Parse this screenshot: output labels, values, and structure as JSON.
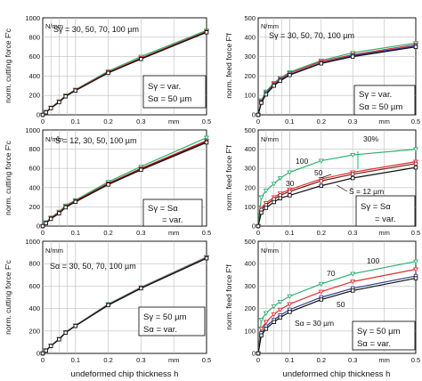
{
  "colors": {
    "green": "#2fae6f",
    "red": "#e03030",
    "dark_red": "#7a1a1a",
    "black": "#111111",
    "blue": "#2a3d8f",
    "grid": "#bdbdbd"
  },
  "x_axis_label": "undeformed chip thickness h",
  "x_unit": "mm",
  "y_unit": "N/mm",
  "chart_data": [
    {
      "type": "line",
      "ylabel": "norm. cutting force F'c",
      "xlim": [
        0,
        0.5
      ],
      "ylim": [
        0,
        1000
      ],
      "xticks": [
        "0",
        "0.1",
        "0.2",
        "0.3",
        "mm",
        "0.5"
      ],
      "yticks": [
        "0",
        "200",
        "400",
        "600",
        "800",
        "1000"
      ],
      "annotation": "Sγ = 30, 50, 70, 100 µm",
      "box": [
        "Sγ = var.",
        "Sα = 50 µm"
      ],
      "x": [
        0,
        0.01,
        0.025,
        0.05,
        0.07,
        0.1,
        0.2,
        0.3,
        0.5
      ],
      "series": [
        {
          "color": "green",
          "marker": "triangle",
          "values": [
            0,
            30,
            75,
            140,
            200,
            260,
            450,
            600,
            870
          ]
        },
        {
          "color": "red",
          "marker": "triangle",
          "values": [
            0,
            28,
            72,
            135,
            195,
            255,
            440,
            585,
            860
          ]
        },
        {
          "color": "dark_red",
          "marker": "circle",
          "values": [
            0,
            27,
            70,
            132,
            192,
            252,
            435,
            580,
            855
          ]
        },
        {
          "color": "black",
          "marker": "square",
          "values": [
            0,
            26,
            69,
            130,
            190,
            250,
            432,
            575,
            850
          ]
        }
      ]
    },
    {
      "type": "line",
      "ylabel": "norm. feed force F'f",
      "xlim": [
        0,
        0.5
      ],
      "ylim": [
        0,
        500
      ],
      "xticks": [
        "0",
        "0.1",
        "0.2",
        "0.3",
        "mm",
        "0.5"
      ],
      "yticks": [
        "0",
        "100",
        "200",
        "300",
        "400",
        "500"
      ],
      "annotation": "Sγ = 30, 50, 70, 100 µm",
      "box": [
        "Sγ = var.",
        "Sα = 50 µm"
      ],
      "x": [
        0,
        0.01,
        0.025,
        0.05,
        0.07,
        0.1,
        0.2,
        0.3,
        0.5
      ],
      "series": [
        {
          "color": "green",
          "marker": "triangle",
          "values": [
            0,
            75,
            120,
            165,
            190,
            220,
            280,
            320,
            370
          ]
        },
        {
          "color": "red",
          "marker": "triangle",
          "values": [
            0,
            70,
            115,
            160,
            185,
            215,
            275,
            310,
            362
          ]
        },
        {
          "color": "blue",
          "marker": "square",
          "values": [
            0,
            65,
            110,
            155,
            180,
            208,
            268,
            305,
            355
          ]
        },
        {
          "color": "black",
          "marker": "square",
          "values": [
            0,
            62,
            105,
            150,
            175,
            205,
            265,
            300,
            350
          ]
        }
      ]
    },
    {
      "type": "line",
      "ylabel": "norm. cutting force F'c",
      "xlim": [
        0,
        0.5
      ],
      "ylim": [
        0,
        1000
      ],
      "xticks": [
        "0",
        "0.1",
        "0.2",
        "0.3",
        "mm",
        "0.5"
      ],
      "yticks": [
        "0",
        "200",
        "400",
        "600",
        "800",
        "1000"
      ],
      "annotation": "S̄ = 12, 30, 50, 100 µm",
      "box": [
        "Sγ = Sα",
        "= var."
      ],
      "x": [
        0,
        0.01,
        0.025,
        0.05,
        0.07,
        0.1,
        0.2,
        0.3,
        0.5
      ],
      "series": [
        {
          "color": "green",
          "marker": "triangle",
          "values": [
            0,
            40,
            90,
            150,
            215,
            270,
            460,
            620,
            920
          ]
        },
        {
          "color": "red",
          "marker": "triangle",
          "values": [
            0,
            35,
            82,
            142,
            205,
            262,
            445,
            600,
            890
          ]
        },
        {
          "color": "dark_red",
          "marker": "circle",
          "values": [
            0,
            33,
            80,
            138,
            200,
            258,
            440,
            595,
            880
          ]
        },
        {
          "color": "black",
          "marker": "square",
          "values": [
            0,
            30,
            75,
            133,
            195,
            252,
            432,
            585,
            870
          ]
        }
      ]
    },
    {
      "type": "line",
      "ylabel": "norm. feed force F'f",
      "xlim": [
        0,
        0.5
      ],
      "ylim": [
        0,
        500
      ],
      "xticks": [
        "0",
        "0.1",
        "0.2",
        "0.3",
        "mm",
        "0.5"
      ],
      "yticks": [
        "0",
        "100",
        "200",
        "300",
        "400",
        "500"
      ],
      "box": [
        "Sγ = Sα",
        "= var."
      ],
      "labels": [
        "100",
        "50",
        "30",
        "S̄ = 12 µm",
        "30%"
      ],
      "x": [
        0,
        0.01,
        0.025,
        0.05,
        0.07,
        0.1,
        0.2,
        0.3,
        0.5
      ],
      "series": [
        {
          "color": "green",
          "marker": "triangle",
          "values": [
            0,
            150,
            185,
            220,
            250,
            280,
            340,
            370,
            400
          ]
        },
        {
          "color": "red",
          "marker": "triangle",
          "values": [
            0,
            95,
            120,
            150,
            170,
            190,
            245,
            280,
            335
          ]
        },
        {
          "color": "dark_red",
          "marker": "circle",
          "values": [
            0,
            85,
            110,
            140,
            160,
            180,
            235,
            270,
            325
          ]
        },
        {
          "color": "black",
          "marker": "square",
          "values": [
            0,
            70,
            95,
            125,
            145,
            160,
            210,
            250,
            305
          ]
        }
      ]
    },
    {
      "type": "line",
      "ylabel": "norm. cutting force F'c",
      "xlim": [
        0,
        0.5
      ],
      "ylim": [
        0,
        1000
      ],
      "xticks": [
        "0",
        "0.1",
        "0.2",
        "0.3",
        "mm",
        "0.5"
      ],
      "yticks": [
        "0",
        "200",
        "400",
        "600",
        "800",
        "1000"
      ],
      "annotation": "Sα = 30, 50, 70, 100 µm",
      "box": [
        "Sγ = 50 µm",
        "Sα = var."
      ],
      "x": [
        0,
        0.01,
        0.025,
        0.05,
        0.07,
        0.1,
        0.2,
        0.3,
        0.5
      ],
      "series": [
        {
          "color": "green",
          "marker": "triangle",
          "values": [
            0,
            28,
            70,
            130,
            190,
            250,
            440,
            590,
            860
          ]
        },
        {
          "color": "red",
          "marker": "triangle",
          "values": [
            0,
            27,
            68,
            128,
            188,
            248,
            436,
            585,
            855
          ]
        },
        {
          "color": "blue",
          "marker": "square",
          "values": [
            0,
            26,
            67,
            126,
            186,
            246,
            433,
            582,
            850
          ]
        },
        {
          "color": "black",
          "marker": "square",
          "values": [
            0,
            25,
            66,
            125,
            185,
            245,
            430,
            580,
            848
          ]
        }
      ]
    },
    {
      "type": "line",
      "ylabel": "norm. feed force F'f",
      "xlim": [
        0,
        0.5
      ],
      "ylim": [
        0,
        500
      ],
      "xticks": [
        "0",
        "0.1",
        "0.2",
        "0.3",
        "mm",
        "0.5"
      ],
      "yticks": [
        "0",
        "100",
        "200",
        "300",
        "400",
        "500"
      ],
      "box": [
        "Sγ = 50 µm",
        "Sα = var."
      ],
      "labels": [
        "100",
        "70",
        "50",
        "Sα = 30 µm"
      ],
      "x": [
        0,
        0.01,
        0.025,
        0.05,
        0.07,
        0.1,
        0.2,
        0.3,
        0.5
      ],
      "series": [
        {
          "color": "green",
          "marker": "triangle",
          "values": [
            0,
            150,
            180,
            210,
            230,
            255,
            310,
            355,
            410
          ]
        },
        {
          "color": "red",
          "marker": "triangle",
          "values": [
            0,
            110,
            140,
            175,
            195,
            220,
            275,
            320,
            375
          ]
        },
        {
          "color": "blue",
          "marker": "square",
          "values": [
            0,
            90,
            120,
            150,
            170,
            195,
            250,
            290,
            345
          ]
        },
        {
          "color": "black",
          "marker": "square",
          "values": [
            0,
            80,
            110,
            140,
            160,
            185,
            240,
            280,
            335
          ]
        }
      ]
    }
  ]
}
